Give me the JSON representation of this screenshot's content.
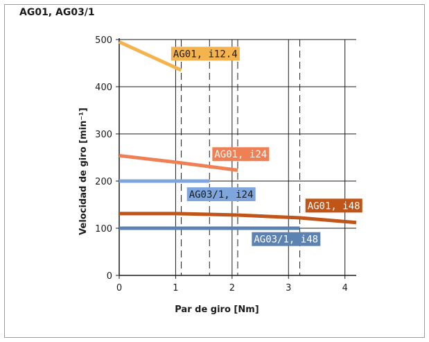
{
  "chart_data": {
    "type": "line",
    "title": "AG01, AG03/1",
    "xlabel": "Par de giro [Nm]",
    "ylabel": "Velocidad de giro [min⁻¹]",
    "xlim": [
      0,
      4.2
    ],
    "ylim": [
      0,
      500
    ],
    "x_ticks": [
      0,
      1,
      2,
      3,
      4
    ],
    "y_ticks": [
      0,
      100,
      200,
      300,
      400,
      500
    ],
    "grid_solid_x": [
      1,
      2,
      3,
      4
    ],
    "grid_dashed_x": [
      1.1,
      1.6,
      2.1,
      3.2
    ],
    "grid_solid_y": [
      100,
      200,
      300,
      400,
      500
    ],
    "series": [
      {
        "name": "AG01, i12.4",
        "color": "#f5b34e",
        "label_color": "#f5b34e",
        "label_text_color": "#1a1a1a",
        "label_x": 0.92,
        "label_y": 470,
        "points": [
          [
            0,
            495
          ],
          [
            1.1,
            435
          ]
        ]
      },
      {
        "name": "AG01, i24",
        "color": "#f08054",
        "label_color": "#f08054",
        "label_text_color": "#ffffff",
        "label_x": 1.65,
        "label_y": 257,
        "points": [
          [
            0,
            254
          ],
          [
            1.0,
            240
          ],
          [
            2.1,
            223
          ]
        ]
      },
      {
        "name": "AG03/1, i24",
        "color": "#7ea6dc",
        "label_color": "#7ea6dc",
        "label_text_color": "#1a1a1a",
        "label_x": 1.2,
        "label_y": 172,
        "points": [
          [
            0,
            200
          ],
          [
            1.6,
            200
          ]
        ]
      },
      {
        "name": "AG01, i48",
        "color": "#bf5518",
        "label_color": "#bf5518",
        "label_text_color": "#ffffff",
        "label_x": 3.3,
        "label_y": 148,
        "points": [
          [
            0,
            131
          ],
          [
            1.0,
            131
          ],
          [
            2.1,
            128
          ],
          [
            3.2,
            122
          ],
          [
            4.2,
            112
          ]
        ]
      },
      {
        "name": "AG03/1, i48",
        "color": "#5c82b2",
        "label_color": "#5c82b2",
        "label_text_color": "#ffffff",
        "label_x": 2.35,
        "label_y": 77,
        "points": [
          [
            0,
            100
          ],
          [
            3.2,
            100
          ]
        ]
      }
    ]
  }
}
